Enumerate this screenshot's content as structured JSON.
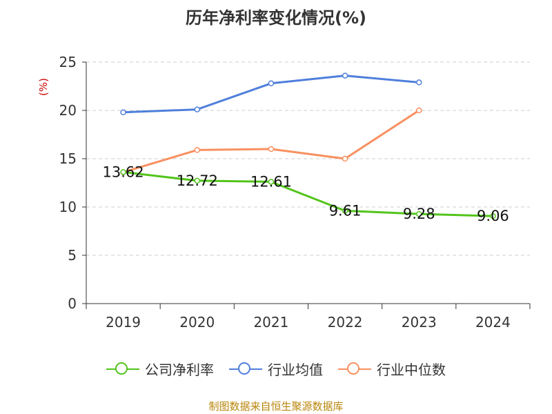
{
  "title": "历年净利率变化情况(%)",
  "source": "制图数据来自恒生聚源数据库",
  "chart_data": {
    "type": "line",
    "title": "历年净利率变化情况(%)",
    "ylabel": "(%)",
    "xlabel": "",
    "categories": [
      "2019",
      "2020",
      "2021",
      "2022",
      "2023",
      "2024"
    ],
    "ylim": [
      0,
      25
    ],
    "yticks": [
      0,
      5,
      10,
      15,
      20,
      25
    ],
    "grid": true,
    "legend_position": "bottom",
    "series": [
      {
        "name": "公司净利率",
        "color": "#52c41a",
        "values": [
          13.62,
          12.72,
          12.61,
          9.61,
          9.28,
          9.06
        ],
        "labels": [
          "13.62",
          "12.72",
          "12.61",
          "9.61",
          "9.28",
          "9.06"
        ]
      },
      {
        "name": "行业均值",
        "color": "#4f7fdb",
        "values": [
          19.8,
          20.1,
          22.8,
          23.6,
          22.9,
          null
        ]
      },
      {
        "name": "行业中位数",
        "color": "#f89060",
        "values": [
          13.6,
          15.9,
          16.0,
          15.0,
          20.0,
          null
        ]
      }
    ]
  }
}
